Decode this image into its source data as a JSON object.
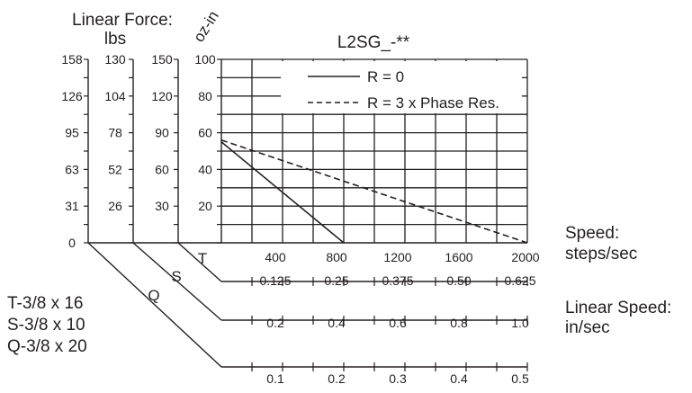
{
  "chart_data": {
    "type": "line",
    "title": "L2SG_-**",
    "header": {
      "linear_force": "Linear Force:",
      "lbs": "lbs",
      "oz_in": "oz-in"
    },
    "xlabel": "Speed:",
    "xunit": "steps/sec",
    "xlim": [
      0,
      2000
    ],
    "x_ticks": [
      "400",
      "800",
      "1200",
      "1600",
      "2000"
    ],
    "x_tick_values": [
      400,
      800,
      1200,
      1600,
      2000
    ],
    "ylim": [
      0,
      100
    ],
    "y_axes": [
      {
        "key": "Q",
        "ticks": [
          "158",
          "126",
          "95",
          "63",
          "31",
          "0"
        ]
      },
      {
        "key": "S",
        "ticks": [
          "130",
          "104",
          "78",
          "52",
          "26"
        ]
      },
      {
        "key": "T",
        "ticks": [
          "150",
          "120",
          "90",
          "60",
          "30"
        ]
      },
      {
        "key": "oz-in",
        "ticks": [
          "100",
          "80",
          "60",
          "40",
          "20"
        ]
      }
    ],
    "axis_keys": [
      "T",
      "S",
      "Q"
    ],
    "series": [
      {
        "name": "R = 0",
        "dash": "solid",
        "x": [
          0,
          800
        ],
        "y": [
          55,
          0
        ]
      },
      {
        "name": "R = 3 x Phase Res.",
        "dash": "dashed",
        "x": [
          0,
          2000
        ],
        "y": [
          56,
          0
        ]
      }
    ],
    "linear_speed": {
      "label": "Linear Speed:",
      "unit": "in/sec",
      "rows": [
        {
          "key": "T",
          "values": [
            "0.125",
            "0.25",
            "0.375",
            "0.50",
            "0.625"
          ]
        },
        {
          "key": "S",
          "values": [
            "0.2",
            "0.4",
            "0.6",
            "0.8",
            "1.0"
          ]
        },
        {
          "key": "Q",
          "values": [
            "0.1",
            "0.2",
            "0.3",
            "0.4",
            "0.5"
          ]
        }
      ]
    },
    "screw_legend": [
      "T-3/8 x 16",
      "S-3/8 x 10",
      "Q-3/8 x 20"
    ],
    "grid": true,
    "legend_position": "top-right"
  }
}
